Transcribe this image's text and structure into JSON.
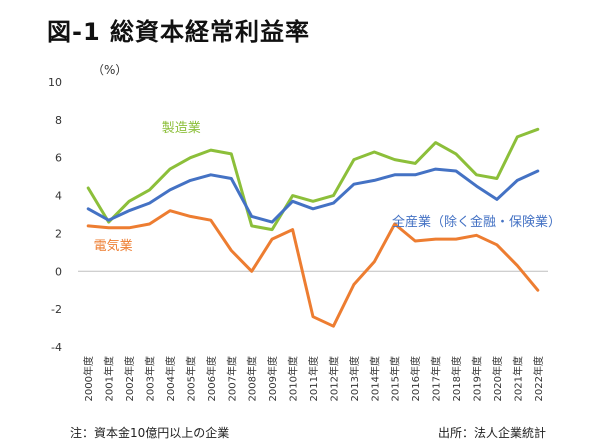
{
  "title": "図-1 総資本経常利益率",
  "note": "注：資本金10億円以上の企業",
  "source": "出所：法人企業統計",
  "chart_data": {
    "type": "line",
    "title": "図-1 総資本経常利益率",
    "unit": "（%）",
    "xlabel": "",
    "ylabel": "（%）",
    "ylim": [
      -4,
      10
    ],
    "yticks": [
      -4,
      -2,
      0,
      2,
      4,
      6,
      8,
      10
    ],
    "grid": false,
    "legend": "inline labels",
    "categories": [
      "2000年度",
      "2001年度",
      "2002年度",
      "2003年度",
      "2004年度",
      "2005年度",
      "2006年度",
      "2007年度",
      "2008年度",
      "2009年度",
      "2010年度",
      "2011年度",
      "2012年度",
      "2013年度",
      "2014年度",
      "2015年度",
      "2016年度",
      "2017年度",
      "2018年度",
      "2019年度",
      "2020年度",
      "2021年度",
      "2022年度"
    ],
    "series": [
      {
        "name": "製造業",
        "color": "#8cbf3a",
        "values": [
          4.4,
          2.6,
          3.7,
          4.3,
          5.4,
          6.0,
          6.4,
          6.2,
          2.4,
          2.2,
          4.0,
          3.7,
          4.0,
          5.9,
          6.3,
          5.9,
          5.7,
          6.8,
          6.2,
          5.1,
          4.9,
          7.1,
          7.5
        ]
      },
      {
        "name": "全産業（除く金融・保険業）",
        "color": "#4472c4",
        "values": [
          3.3,
          2.7,
          3.2,
          3.6,
          4.3,
          4.8,
          5.1,
          4.9,
          2.9,
          2.6,
          3.7,
          3.3,
          3.6,
          4.6,
          4.8,
          5.1,
          5.1,
          5.4,
          5.3,
          4.5,
          3.8,
          4.8,
          5.3
        ]
      },
      {
        "name": "電気業",
        "color": "#ed7d31",
        "values": [
          2.4,
          2.3,
          2.3,
          2.5,
          3.2,
          2.9,
          2.7,
          1.1,
          0.0,
          1.7,
          2.2,
          -2.4,
          -2.9,
          -0.7,
          0.5,
          2.5,
          1.6,
          1.7,
          1.7,
          1.9,
          1.4,
          0.3,
          -1.0
        ]
      }
    ]
  }
}
